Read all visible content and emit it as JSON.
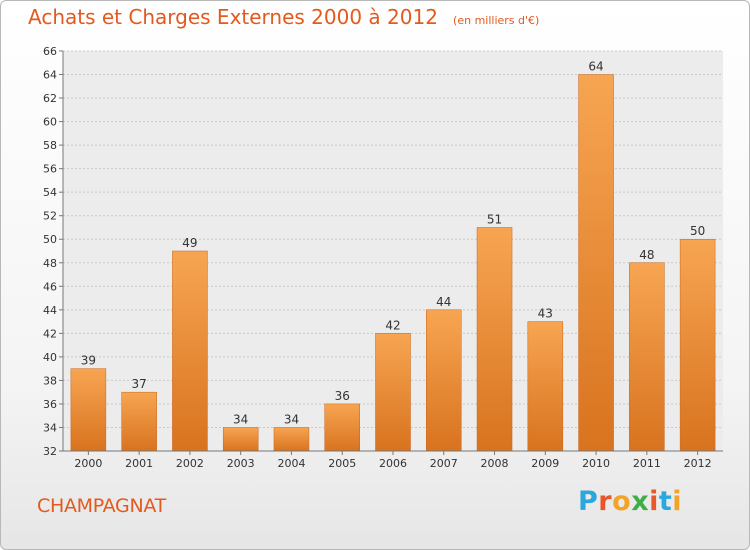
{
  "header": {
    "title": "Achats et Charges Externes 2000 à 2012",
    "subtitle": "(en milliers d'€)"
  },
  "commune": "CHAMPAGNAT",
  "logo": {
    "text": "Proxiti",
    "letter_colors": [
      "#2aa7de",
      "#e8562a",
      "#f2a32a",
      "#3fae49",
      "#e8562a",
      "#2aa7de",
      "#f2a32a"
    ]
  },
  "colors": {
    "bar_top": "#f7a552",
    "bar_bottom": "#d8731f",
    "accent": "#e35a1e"
  },
  "chart_data": {
    "type": "bar",
    "categories": [
      "2000",
      "2001",
      "2002",
      "2003",
      "2004",
      "2005",
      "2006",
      "2007",
      "2008",
      "2009",
      "2010",
      "2011",
      "2012"
    ],
    "values": [
      39,
      37,
      49,
      34,
      34,
      36,
      42,
      44,
      51,
      43,
      64,
      48,
      50
    ],
    "ylim": [
      32,
      66
    ],
    "yticks": [
      32,
      34,
      36,
      38,
      40,
      42,
      44,
      46,
      48,
      50,
      52,
      54,
      56,
      58,
      60,
      62,
      64,
      66
    ],
    "grid": true,
    "data_labels": true
  }
}
